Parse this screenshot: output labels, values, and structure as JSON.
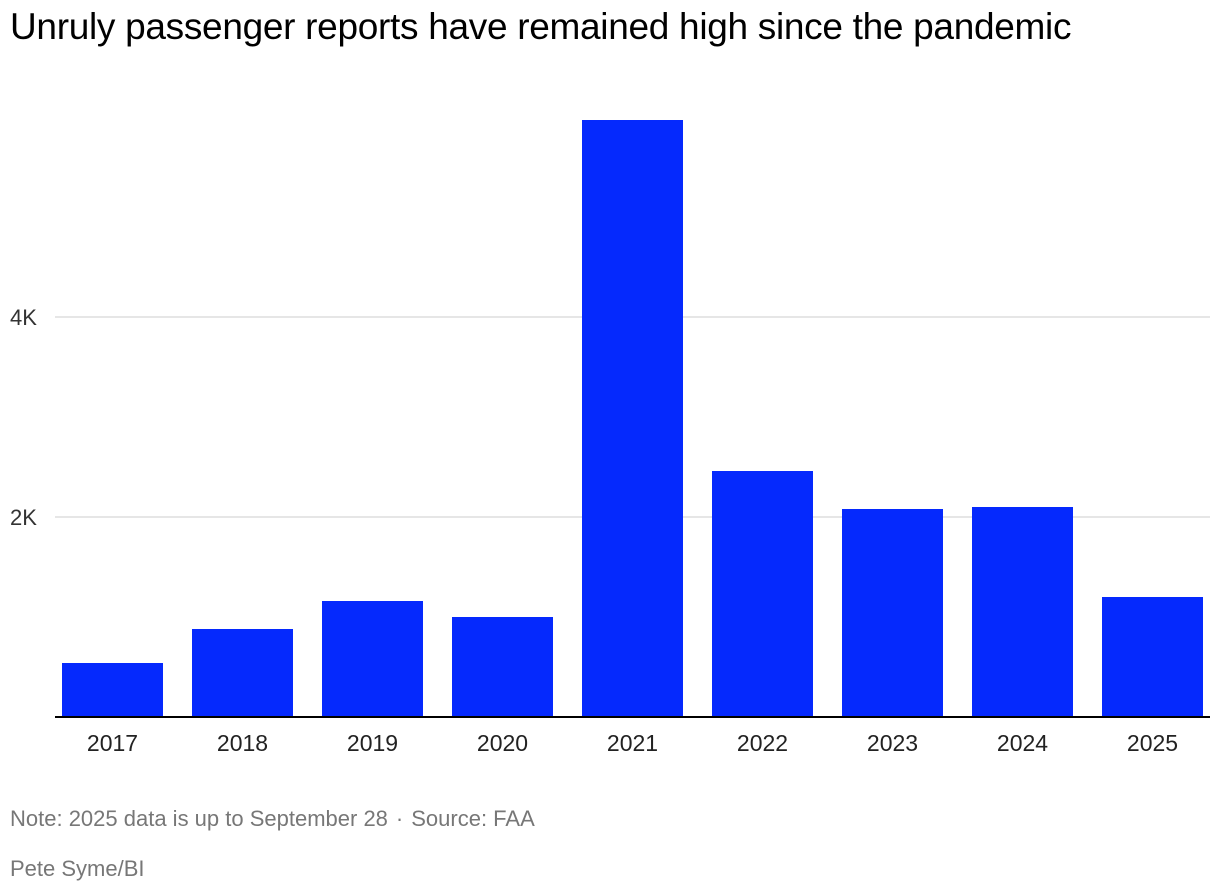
{
  "chart_data": {
    "type": "bar",
    "title": "Unruly passenger reports have remained high since the pandemic",
    "categories": [
      "2017",
      "2018",
      "2019",
      "2020",
      "2021",
      "2022",
      "2023",
      "2024",
      "2025"
    ],
    "values": [
      540,
      880,
      1160,
      1000,
      5970,
      2460,
      2080,
      2100,
      1200
    ],
    "ylim": [
      0,
      6000
    ],
    "yticks": [
      2000,
      4000
    ],
    "ytick_labels": [
      "2K",
      "4K"
    ],
    "xlabel": "",
    "ylabel": "",
    "bar_color": "#0529fd",
    "grid": true,
    "grid_color": "#dddddd"
  },
  "footer": {
    "note": "Note: 2025 data is up to September 28",
    "separator": "·",
    "source": "Source: FAA",
    "credit": "Pete Syme/BI"
  }
}
